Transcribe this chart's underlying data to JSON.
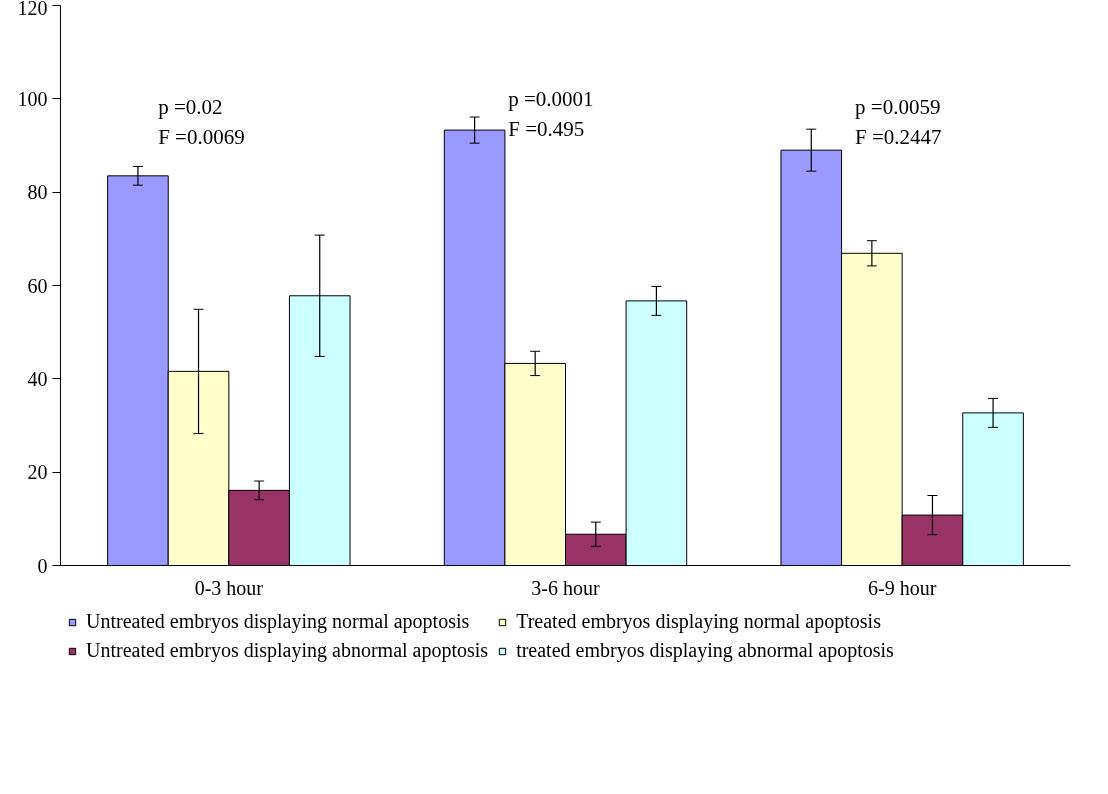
{
  "chart_data": {
    "type": "bar",
    "categories": [
      "0-3 hour",
      "3-6 hour",
      "6-9 hour"
    ],
    "series": [
      {
        "name": "Untreated embryos displaying normal apoptosis",
        "color": "#9999ff",
        "values": [
          83.5,
          93.3,
          89
        ],
        "errors": [
          2,
          2.8,
          4.5
        ]
      },
      {
        "name": "Treated embryos displaying normal apoptosis",
        "color": "#ffffcc",
        "values": [
          41.6,
          43.3,
          66.9
        ],
        "errors": [
          13.3,
          2.6,
          2.7
        ]
      },
      {
        "name": "Untreated embryos displaying abnormal apoptosis",
        "color": "#993366",
        "values": [
          16.1,
          6.7,
          10.8
        ],
        "errors": [
          2,
          2.6,
          4.2
        ]
      },
      {
        "name": "treated embryos displaying abnormal apoptosis",
        "color": "#ccffff",
        "values": [
          57.8,
          56.7,
          32.7
        ],
        "errors": [
          13,
          3.1,
          3.1
        ]
      }
    ],
    "ylim": [
      0,
      120
    ],
    "yticks": [
      0,
      20,
      40,
      60,
      80,
      100,
      120
    ],
    "grid": false,
    "legend": "bottom",
    "annotations": [
      "p =0.02\nF =0.0069",
      "p =0.0001\nF =0.495",
      "p =0.0059\nF =0.2447"
    ]
  }
}
